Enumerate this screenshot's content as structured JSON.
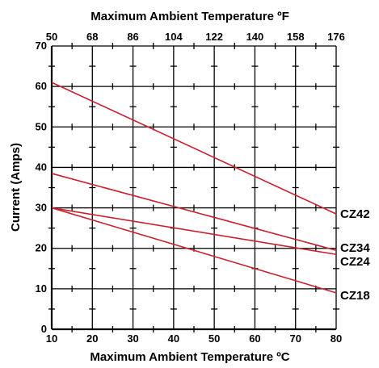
{
  "chart_data": {
    "type": "line",
    "title": "Maximum Ambient Temperature ºF",
    "xlabel": "Maximum Ambient Temperature ºC",
    "ylabel": "Current (Amps)",
    "xlim": [
      10,
      80
    ],
    "ylim": [
      0,
      70
    ],
    "x_ticks": [
      "10",
      "20",
      "30",
      "40",
      "50",
      "60",
      "70",
      "80"
    ],
    "x_tick_values": [
      10,
      20,
      30,
      40,
      50,
      60,
      70,
      80
    ],
    "x_top_ticks": [
      "50",
      "68",
      "86",
      "104",
      "122",
      "140",
      "158",
      "176"
    ],
    "y_ticks": [
      "0",
      "10",
      "20",
      "30",
      "40",
      "50",
      "60",
      "70"
    ],
    "y_tick_values": [
      0,
      10,
      20,
      30,
      40,
      50,
      60,
      70
    ],
    "grid": true,
    "line_color": "#cc1f2f",
    "grid_color": "#000000",
    "series": [
      {
        "name": "CZ42",
        "x": [
          10,
          80
        ],
        "y": [
          61,
          28.5
        ]
      },
      {
        "name": "CZ34",
        "x": [
          10,
          80
        ],
        "y": [
          38.5,
          19.5
        ]
      },
      {
        "name": "CZ24",
        "x": [
          10,
          80
        ],
        "y": [
          30,
          18.5
        ]
      },
      {
        "name": "CZ18",
        "x": [
          10,
          80
        ],
        "y": [
          30,
          9
        ]
      }
    ]
  }
}
